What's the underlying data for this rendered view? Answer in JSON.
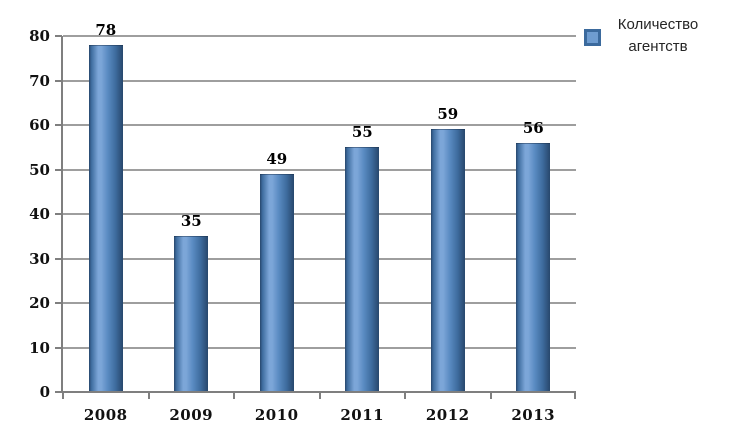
{
  "chart_data": {
    "type": "bar",
    "title": "",
    "categories": [
      "2008",
      "2009",
      "2010",
      "2011",
      "2012",
      "2013"
    ],
    "series": [
      {
        "name": "Количество агентств",
        "values": [
          78,
          35,
          49,
          55,
          59,
          56
        ]
      }
    ],
    "data_labels": [
      "78",
      "35",
      "49",
      "55",
      "59",
      "56"
    ],
    "xlabel": "",
    "ylabel": "",
    "ylim": [
      0,
      80
    ],
    "ytick_step": 10,
    "yticks": [
      "0",
      "10",
      "20",
      "30",
      "40",
      "50",
      "60",
      "70",
      "80"
    ],
    "grid": true,
    "legend_position": "top-right",
    "colors": {
      "bar_dark": "#27476C",
      "bar_mid": "#3E6C9E",
      "bar_base": "#5A8BC2",
      "bar_light": "#7CA6D8",
      "legend_marker_border": "#3B6A9D",
      "legend_marker_fill": "#6E9CD0",
      "gridline": "#9E9E9E",
      "axis": "#7F7F7F",
      "tick_label": "#111111",
      "data_label": "#000000",
      "legend_text": "#262626",
      "background": "#FFFFFF"
    }
  }
}
